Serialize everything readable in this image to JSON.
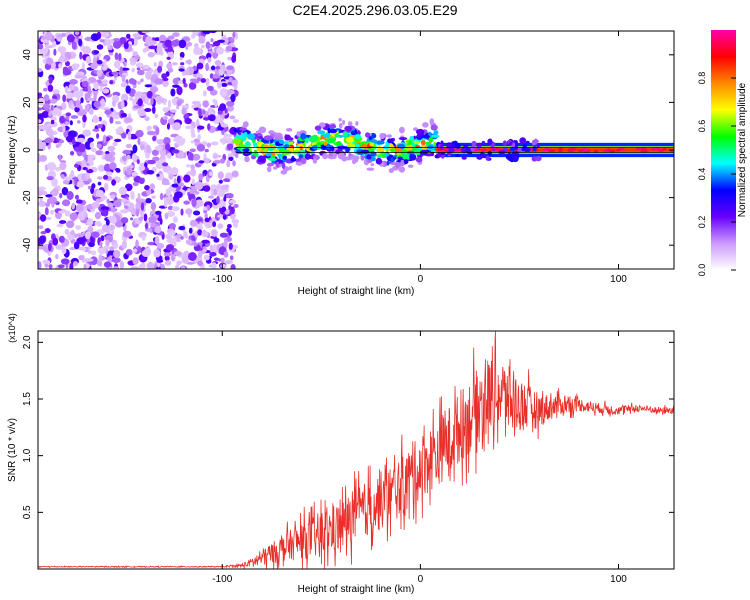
{
  "title": "C2E4.2025.296.03.05.E29",
  "chart_data": [
    {
      "type": "heatmap",
      "title": "C2E4.2025.296.03.05.E29",
      "xlabel": "Height of straight line (km)",
      "ylabel": "Frequency (Hz)",
      "xlim": [
        -193,
        128
      ],
      "ylim": [
        -50,
        50
      ],
      "xticks": [
        -100,
        0,
        100
      ],
      "xtick_labels": [
        "-100",
        "0",
        "100"
      ],
      "yticks": [
        -40,
        -20,
        0,
        20,
        40
      ],
      "ytick_labels": [
        "-40",
        "-20",
        "0",
        "20",
        "40"
      ],
      "colorbar": {
        "label": "Normalized spectral amplitude",
        "range": [
          0,
          1
        ],
        "ticks": [
          0,
          0.2,
          0.4,
          0.6,
          0.8
        ],
        "tick_labels": [
          "0.0",
          "0.2",
          "0.4",
          "0.6",
          "0.8"
        ],
        "colors": [
          "#ffffff",
          "#cc99ff",
          "#6600ff",
          "#0000ff",
          "#00ffff",
          "#00ff00",
          "#ffff00",
          "#ff8800",
          "#ff0000",
          "#ff00aa"
        ]
      },
      "regions": [
        {
          "x_range": [
            -193,
            -93
          ],
          "freq_range": [
            -50,
            50
          ],
          "amplitude": "low (0.1-0.25), noise-dominated"
        },
        {
          "x_range": [
            -93,
            8
          ],
          "center_freq": 2,
          "width_hz": 12,
          "amplitude": "0.3-0.8"
        },
        {
          "x_range": [
            8,
            128
          ],
          "center_freq": 0,
          "width_hz": 3,
          "amplitude": "0.8-1.0, narrowband carrier"
        }
      ],
      "reference_lines_hz": [
        -1,
        1
      ]
    },
    {
      "type": "line",
      "xlabel": "Height of straight line (km)",
      "ylabel": "SNR (10 * v/v)",
      "y_multiplier": "(x10^4)",
      "xlim": [
        -193,
        128
      ],
      "ylim": [
        0,
        2.1
      ],
      "xticks": [
        -100,
        0,
        100
      ],
      "xtick_labels": [
        "-100",
        "0",
        "100"
      ],
      "yticks": [
        0.5,
        1.0,
        1.5,
        2.0
      ],
      "ytick_labels": [
        "0.5",
        "1.0",
        "1.5",
        "2.0"
      ],
      "series": [
        {
          "name": "SNR",
          "color": "#e8302a",
          "x": [
            -193,
            -150,
            -100,
            -90,
            -85,
            -80,
            -70,
            -60,
            -50,
            -40,
            -30,
            -20,
            -10,
            0,
            10,
            20,
            25,
            30,
            35,
            40,
            45,
            50,
            60,
            70,
            80,
            90,
            100,
            110,
            120,
            128
          ],
          "y": [
            0.02,
            0.02,
            0.02,
            0.03,
            0.06,
            0.1,
            0.18,
            0.25,
            0.3,
            0.38,
            0.5,
            0.6,
            0.72,
            0.9,
            1.05,
            1.25,
            1.35,
            1.45,
            1.55,
            1.55,
            1.5,
            1.45,
            1.4,
            1.45,
            1.45,
            1.42,
            1.4,
            1.42,
            1.4,
            1.4
          ],
          "max_fluctuation": [
            0.005,
            0.005,
            0.005,
            0.02,
            0.05,
            0.1,
            0.15,
            0.22,
            0.28,
            0.3,
            0.32,
            0.35,
            0.35,
            0.38,
            0.4,
            0.42,
            0.45,
            0.45,
            0.45,
            0.42,
            0.38,
            0.32,
            0.2,
            0.12,
            0.08,
            0.06,
            0.05,
            0.04,
            0.04,
            0.04
          ]
        }
      ]
    }
  ]
}
